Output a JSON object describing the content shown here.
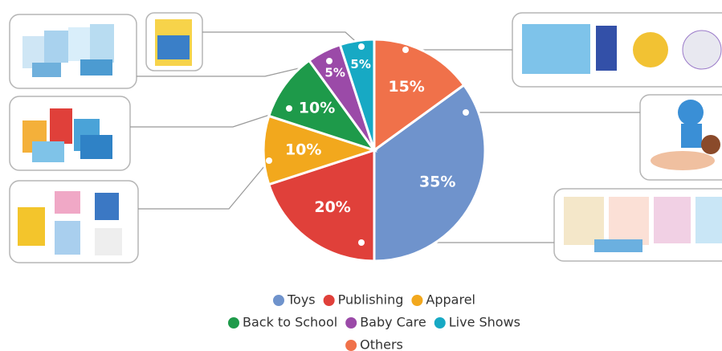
{
  "chart_data": {
    "type": "pie",
    "categories": [
      "Toys",
      "Publishing",
      "Apparel",
      "Back to School",
      "Baby Care",
      "Live Shows",
      "Others"
    ],
    "values": [
      35,
      20,
      10,
      10,
      5,
      5,
      15
    ],
    "value_labels": [
      "35%",
      "20%",
      "10%",
      "10%",
      "5%",
      "5%",
      "15%"
    ],
    "colors": [
      "#6f93cc",
      "#e0403a",
      "#f2a81d",
      "#1e9a4a",
      "#9b4aa8",
      "#17a9c4",
      "#f0714a"
    ],
    "legend": "bottom"
  }
}
